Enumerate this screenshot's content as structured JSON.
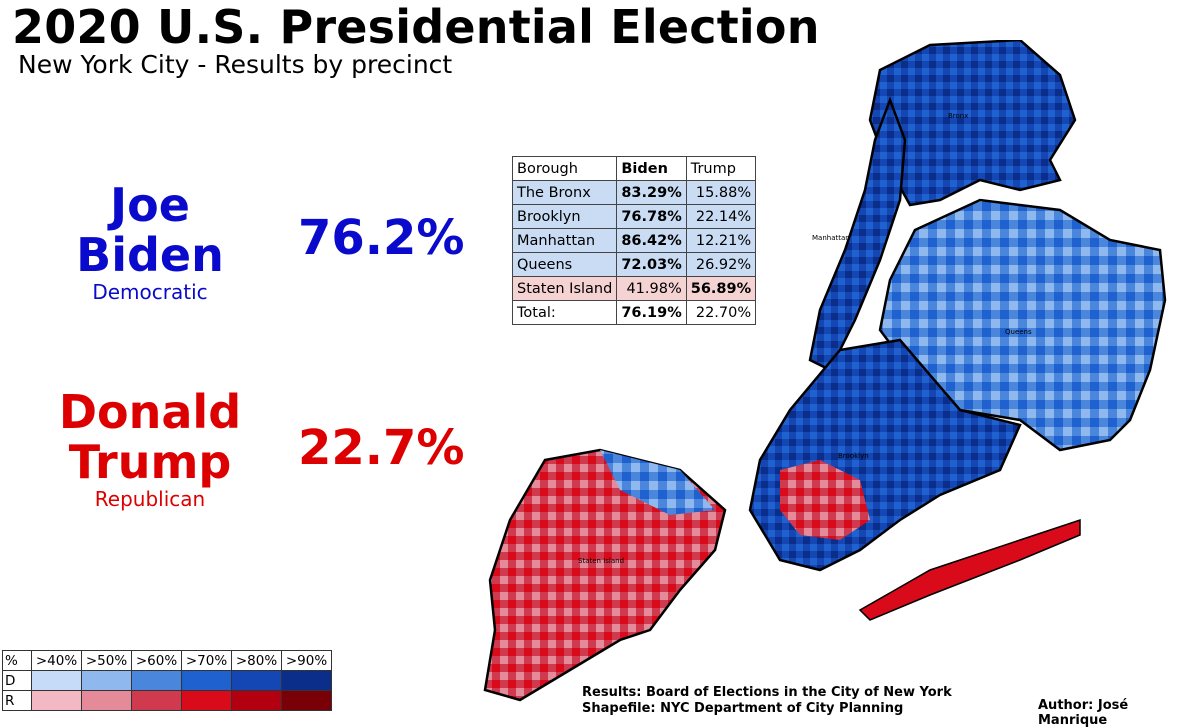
{
  "title": "2020 U.S. Presidential Election",
  "subtitle": "New York City - Results by precinct",
  "candidates": {
    "biden": {
      "first": "Joe",
      "last": "Biden",
      "party": "Democratic",
      "percent": "76.2%",
      "color": "#0a0acc"
    },
    "trump": {
      "first": "Donald",
      "last": "Trump",
      "party": "Republican",
      "percent": "22.7%",
      "color": "#dd0000"
    }
  },
  "results_table": {
    "headers": [
      "Borough",
      "Biden",
      "Trump"
    ],
    "rows": [
      {
        "borough": "The Bronx",
        "biden": "83.29%",
        "trump": "15.88%",
        "winner": "biden"
      },
      {
        "borough": "Brooklyn",
        "biden": "76.78%",
        "trump": "22.14%",
        "winner": "biden"
      },
      {
        "borough": "Manhattan",
        "biden": "86.42%",
        "trump": "12.21%",
        "winner": "biden"
      },
      {
        "borough": "Queens",
        "biden": "72.03%",
        "trump": "26.92%",
        "winner": "biden"
      },
      {
        "borough": "Staten Island",
        "biden": "41.98%",
        "trump": "56.89%",
        "winner": "trump"
      }
    ],
    "total": {
      "label": "Total:",
      "biden": "76.19%",
      "trump": "22.70%"
    }
  },
  "map_labels": {
    "bronx": "Bronx",
    "manhattan": "Manhattan",
    "queens": "Queens",
    "brooklyn": "Brooklyn",
    "staten_island": "Staten Island"
  },
  "legend": {
    "corner": "%",
    "bins": [
      ">40%",
      ">50%",
      ">60%",
      ">70%",
      ">80%",
      ">90%"
    ],
    "rows": [
      {
        "label": "D",
        "colors": [
          "#c6dbf7",
          "#8fb8ee",
          "#4a86dc",
          "#1f62cf",
          "#1446b4",
          "#0b2e8a"
        ]
      },
      {
        "label": "R",
        "colors": [
          "#f2b8c4",
          "#e48a99",
          "#cf3a4e",
          "#d90a1a",
          "#b30010",
          "#7a0008"
        ]
      }
    ]
  },
  "credits": {
    "results": "Results: Board of Elections in the City of New York",
    "shapefile": "Shapefile: NYC Department of City Planning",
    "author": "Author: José Manrique"
  }
}
